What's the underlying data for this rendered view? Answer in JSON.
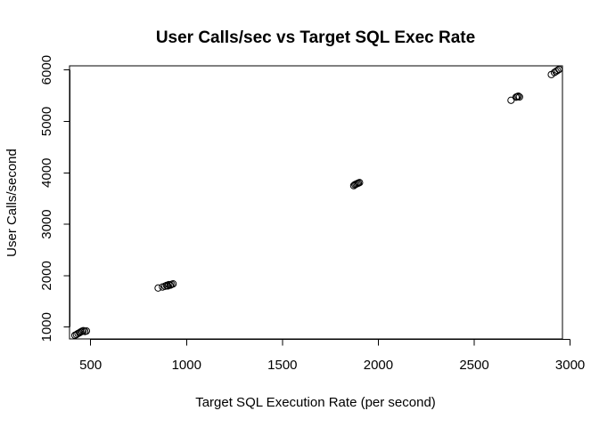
{
  "chart_data": {
    "type": "scatter",
    "title": "User Calls/sec vs Target SQL Exec Rate",
    "xlabel": "Target SQL Execution Rate (per second)",
    "ylabel": "User Calls/second",
    "xlim": [
      390,
      2960
    ],
    "ylim": [
      770,
      6080
    ],
    "xticks": [
      500,
      1000,
      1500,
      2000,
      2500,
      3000
    ],
    "yticks": [
      1000,
      2000,
      3000,
      4000,
      5000,
      6000
    ],
    "grid": false,
    "legend": "none",
    "marker": "open-circle",
    "color": "#000000",
    "points": [
      {
        "x": 418,
        "y": 840
      },
      {
        "x": 426,
        "y": 855
      },
      {
        "x": 434,
        "y": 875
      },
      {
        "x": 442,
        "y": 890
      },
      {
        "x": 448,
        "y": 905
      },
      {
        "x": 455,
        "y": 920
      },
      {
        "x": 462,
        "y": 930
      },
      {
        "x": 470,
        "y": 915
      },
      {
        "x": 478,
        "y": 925
      },
      {
        "x": 852,
        "y": 1760
      },
      {
        "x": 875,
        "y": 1780
      },
      {
        "x": 888,
        "y": 1795
      },
      {
        "x": 896,
        "y": 1810
      },
      {
        "x": 902,
        "y": 1800
      },
      {
        "x": 908,
        "y": 1825
      },
      {
        "x": 915,
        "y": 1815
      },
      {
        "x": 922,
        "y": 1830
      },
      {
        "x": 930,
        "y": 1840
      },
      {
        "x": 1872,
        "y": 3750
      },
      {
        "x": 1878,
        "y": 3770
      },
      {
        "x": 1884,
        "y": 3780
      },
      {
        "x": 1890,
        "y": 3790
      },
      {
        "x": 1896,
        "y": 3800
      },
      {
        "x": 1902,
        "y": 3810
      },
      {
        "x": 2692,
        "y": 5410
      },
      {
        "x": 2718,
        "y": 5470
      },
      {
        "x": 2724,
        "y": 5480
      },
      {
        "x": 2730,
        "y": 5490
      },
      {
        "x": 2736,
        "y": 5475
      },
      {
        "x": 2902,
        "y": 5910
      },
      {
        "x": 2918,
        "y": 5950
      },
      {
        "x": 2926,
        "y": 5970
      },
      {
        "x": 2934,
        "y": 5990
      },
      {
        "x": 2942,
        "y": 6010
      }
    ]
  }
}
